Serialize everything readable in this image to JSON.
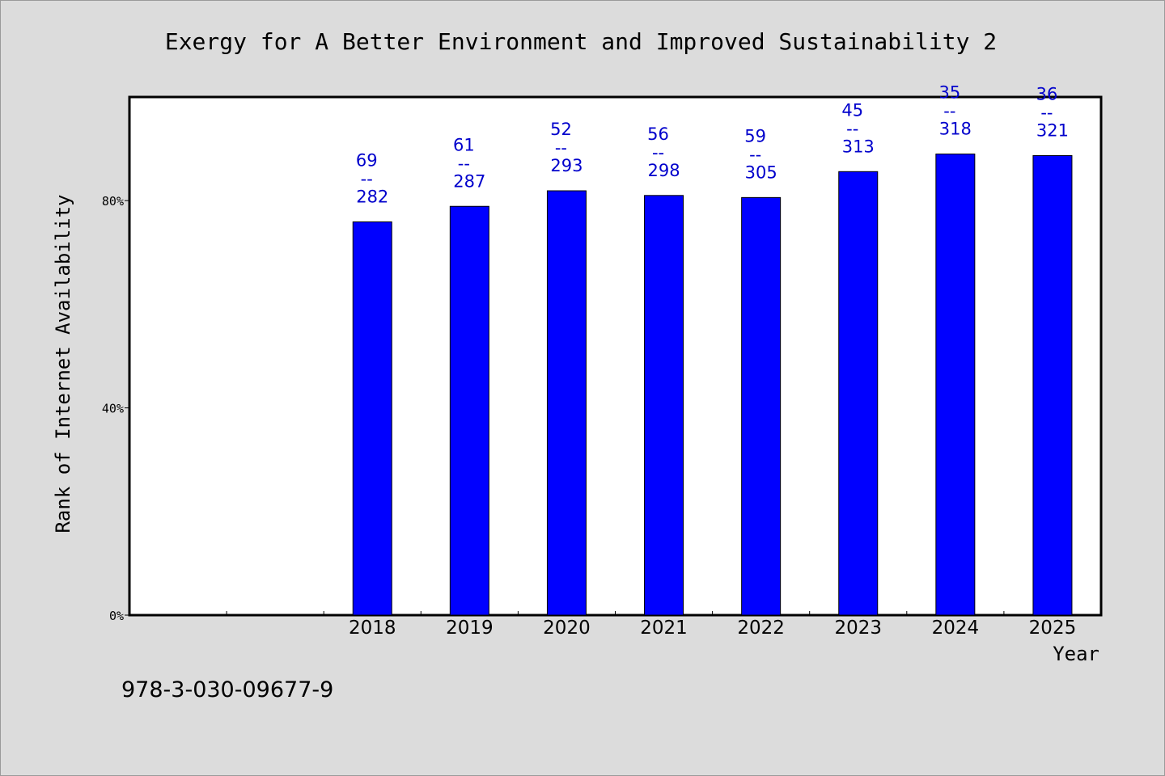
{
  "footer": {
    "isbn": "978-3-030-09677-9"
  },
  "colors": {
    "bar": "#0000ff",
    "label": "#0000cc",
    "background": "#dcdcdc",
    "plot": "#ffffff"
  },
  "chart_data": {
    "type": "bar",
    "title": "Exergy for A Better Environment and Improved Sustainability 2",
    "xlabel": "Year",
    "ylabel": "Rank of Internet Availability",
    "categories": [
      "2018",
      "2019",
      "2020",
      "2021",
      "2022",
      "2023",
      "2024",
      "2025"
    ],
    "values": [
      75.9,
      78.9,
      81.9,
      81.0,
      80.6,
      85.6,
      89.0,
      88.7
    ],
    "value_unit": "%",
    "labels_top": [
      "69",
      "61",
      "52",
      "56",
      "59",
      "45",
      "35",
      "36"
    ],
    "labels_bottom": [
      "282",
      "287",
      "293",
      "298",
      "305",
      "313",
      "318",
      "321"
    ],
    "label_separator": "--",
    "ylim": [
      0,
      100
    ],
    "yticks": [
      {
        "value": 0,
        "label": "0%"
      },
      {
        "value": 40,
        "label": "40%"
      },
      {
        "value": 80,
        "label": "80%"
      }
    ],
    "empty_leading_slots": 2,
    "grid": false,
    "legend": "none"
  }
}
